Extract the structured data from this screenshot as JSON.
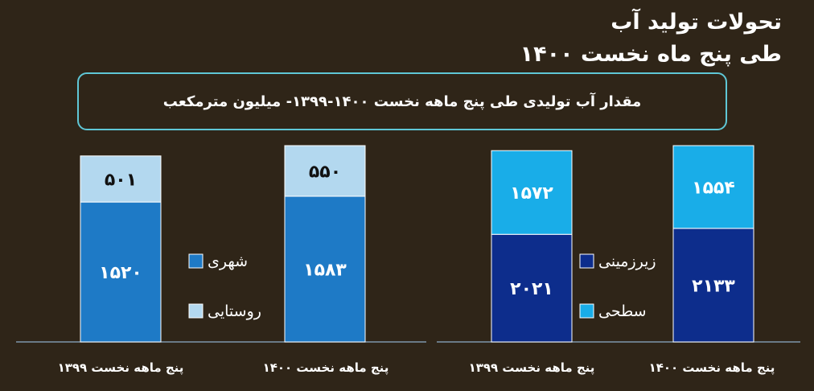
{
  "title": {
    "line1": "تحولات تولید آب",
    "line2": "طی پنج ماه نخست ۱۴۰۰"
  },
  "subtitle": "مقدار آب تولیدی طی پنج ماهه نخست ۱۴۰۰-۱۳۹۹- میلیون مترمکعب",
  "colors": {
    "background": "#2f2518",
    "urban": "#1e7ac6",
    "rural": "#b3d8ef",
    "underground": "#0d2d8c",
    "surface": "#19ade8",
    "box_border": "#5fc7d6",
    "axis": "#7f96ab"
  },
  "chart_data": [
    {
      "type": "bar",
      "stacked": true,
      "categories": [
        "پنج ماهه نخست ۱۳۹۹",
        "پنج ماهه نخست ۱۴۰۰"
      ],
      "series": [
        {
          "name": "شهری",
          "key": "urban",
          "values": [
            1520,
            1583
          ],
          "labels": [
            "۱۵۲۰",
            "۱۵۸۳"
          ]
        },
        {
          "name": "روستایی",
          "key": "rural",
          "values": [
            501,
            550
          ],
          "labels": [
            "۵۰۱",
            "۵۵۰"
          ]
        }
      ],
      "legend": "between-bars"
    },
    {
      "type": "bar",
      "stacked": true,
      "categories": [
        "پنج ماهه نخست ۱۳۹۹",
        "پنج ماهه نخست ۱۴۰۰"
      ],
      "series": [
        {
          "name": "زیرزمینی",
          "key": "underground",
          "values": [
            2021,
            2133
          ],
          "labels": [
            "۲۰۲۱",
            "۲۱۳۳"
          ]
        },
        {
          "name": "سطحی",
          "key": "surface",
          "values": [
            1572,
            1554
          ],
          "labels": [
            "۱۵۷۲",
            "۱۵۵۴"
          ]
        }
      ],
      "legend": "between-bars"
    }
  ]
}
